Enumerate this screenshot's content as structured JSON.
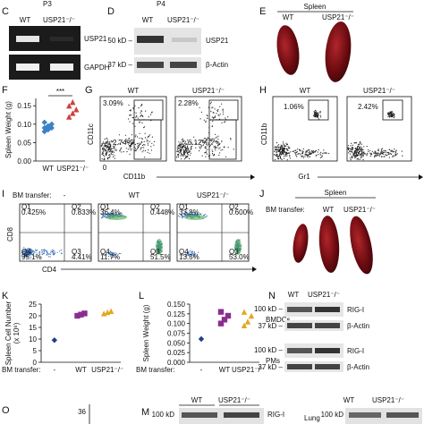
{
  "panels": {
    "C": {
      "letter": "C",
      "stage": "P3",
      "lanes": [
        "WT",
        "USP21⁻/⁻"
      ],
      "bands": [
        "USP21",
        "GAPDH"
      ]
    },
    "D": {
      "letter": "D",
      "stage": "P4",
      "lanes": [
        "WT",
        "USP21⁻/⁻"
      ],
      "markers": [
        "50 kD –",
        "37 kD –"
      ],
      "bands": [
        "USP21",
        "β-Actin"
      ]
    },
    "E": {
      "letter": "E",
      "title": "Spleen",
      "lanes": [
        "WT",
        "USP21⁻/⁻"
      ]
    },
    "F": {
      "letter": "F",
      "y_label": [
        "Spleen Weight (g)"
      ],
      "significance": "***",
      "ylim": [
        0,
        0.17
      ],
      "yticks": [
        {
          "value": 0,
          "label": "0.00"
        },
        {
          "value": 0.05,
          "label": "0.05"
        },
        {
          "value": 0.1,
          "label": "0.10"
        },
        {
          "value": 0.15,
          "label": "0.15"
        }
      ],
      "groups": [
        {
          "category": "WT",
          "color": "#3b82c4",
          "shape": "diamond",
          "values": [
            0.08,
            0.085,
            0.09,
            0.09,
            0.095,
            0.1,
            0.105
          ]
        },
        {
          "category": "USP21⁻/⁻",
          "color": "#d0403a",
          "shape": "triangle",
          "values": [
            0.12,
            0.13,
            0.14,
            0.15,
            0.16
          ]
        }
      ]
    },
    "G": {
      "letter": "G",
      "titles": [
        "WT",
        "USP21⁻/⁻"
      ],
      "gates": [
        [
          "3.09%",
          "2.74%"
        ],
        [
          "2.28%",
          "6.12%"
        ]
      ],
      "y_label": "CD11c",
      "x_label": "CD11b",
      "origin": "0"
    },
    "H": {
      "letter": "H",
      "titles": [
        "WT",
        "USP21⁻/⁻"
      ],
      "gates": [
        "1.06%",
        "2.42%"
      ],
      "y_label": "CD11b",
      "x_label": "Gr1"
    },
    "I": {
      "letter": "I",
      "row_label": "BM transfer:",
      "titles": [
        "-",
        "WT",
        "USP21⁻/⁻"
      ],
      "quadrants": [
        [
          {
            "name": "Q1",
            "value": "0.425%"
          },
          {
            "name": "Q2",
            "value": "0.833%"
          },
          {
            "name": "Q4",
            "value": "95.1%"
          },
          {
            "name": "Q3",
            "value": "4.41%"
          }
        ],
        [
          {
            "name": "Q1",
            "value": "36.4%"
          },
          {
            "name": "Q2",
            "value": "0.448%"
          },
          {
            "name": "Q4",
            "value": "11.7%"
          },
          {
            "name": "Q3",
            "value": "51.5%"
          }
        ],
        [
          {
            "name": "Q1",
            "value": "33.8%"
          },
          {
            "name": "Q2",
            "value": "0.600%"
          },
          {
            "name": "Q4",
            "value": "13.5%"
          },
          {
            "name": "Q3",
            "value": "53.0%"
          }
        ]
      ],
      "y_label": "CD8",
      "x_label": "CD4"
    },
    "J": {
      "letter": "J",
      "title": "Spleen",
      "row_label": "BM transfer:",
      "lanes": [
        "-",
        "WT",
        "USP21⁻/⁻"
      ]
    },
    "K": {
      "letter": "K",
      "y_label": [
        "Spleen Cell Number",
        "(x 10⁶)"
      ],
      "row_label": "BM transfer:",
      "ylim": [
        0,
        25
      ],
      "yticks": [
        0,
        5,
        10,
        15,
        20,
        25
      ],
      "groups": [
        {
          "category": "-",
          "color": "#1f3f8a",
          "shape": "diamond",
          "values": [
            9.5
          ]
        },
        {
          "category": "WT",
          "color": "#8b2d8e",
          "shape": "square",
          "values": [
            20,
            20.5,
            21
          ]
        },
        {
          "category": "USP21⁻/⁻",
          "color": "#e0a81c",
          "shape": "triangle",
          "values": [
            21,
            21.5,
            22
          ]
        }
      ]
    },
    "L": {
      "letter": "L",
      "y_label": [
        "Spleen Weight (g)"
      ],
      "row_label": "BM transfer:",
      "ylim": [
        0,
        0.15
      ],
      "yticks": [
        {
          "value": 0,
          "label": "0.000"
        },
        {
          "value": 0.025,
          "label": "0.025"
        },
        {
          "value": 0.05,
          "label": "0.050"
        },
        {
          "value": 0.075,
          "label": "0.075"
        },
        {
          "value": 0.1,
          "label": "0.100"
        },
        {
          "value": 0.125,
          "label": "0.125"
        },
        {
          "value": 0.15,
          "label": "0.150"
        }
      ],
      "groups": [
        {
          "category": "-",
          "color": "#1f3f8a",
          "shape": "diamond",
          "values": [
            0.06
          ]
        },
        {
          "category": "WT",
          "color": "#8b2d8e",
          "shape": "square",
          "values": [
            0.1,
            0.11,
            0.12,
            0.13
          ]
        },
        {
          "category": "USP21⁻/⁻",
          "color": "#e0a81c",
          "shape": "triangle",
          "values": [
            0.095,
            0.105,
            0.12,
            0.13
          ]
        }
      ]
    },
    "N": {
      "letter": "N",
      "lanes": [
        "WT",
        "USP21⁻/⁻"
      ],
      "cells": [
        "BMDCs",
        "PMs"
      ],
      "markers": [
        "100 kD –",
        "37 kD –"
      ],
      "bands": [
        "RIG-I",
        "β-Actin"
      ]
    },
    "O": {
      "letter": "O",
      "tick": "36"
    },
    "M": {
      "letter": "M",
      "lanes": [
        "WT",
        "USP21⁻/⁻"
      ],
      "marker": "100 kD",
      "band": "RIG-I",
      "tissue": "Lung",
      "lanes2": [
        "WT",
        "USP21⁻/⁻"
      ],
      "marker2": "100 kD"
    }
  }
}
